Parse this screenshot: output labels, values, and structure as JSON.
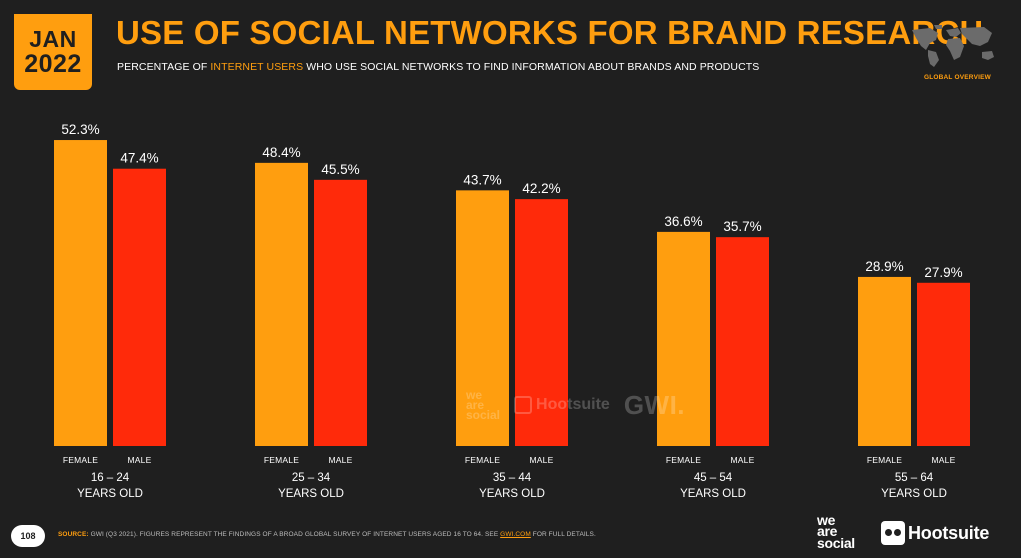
{
  "header": {
    "date_month": "JAN",
    "date_year": "2022",
    "title": "USE OF SOCIAL NETWORKS FOR BRAND RESEARCH",
    "subtitle_pre": "PERCENTAGE OF ",
    "subtitle_highlight": "INTERNET USERS",
    "subtitle_post": " WHO USE SOCIAL NETWORKS TO FIND INFORMATION ABOUT BRANDS AND PRODUCTS",
    "global_overview": "GLOBAL OVERVIEW",
    "map_icon": "world-map-icon"
  },
  "colors": {
    "background": "#1f1f1f",
    "accent": "#ff9e0f",
    "female": "#ff9e0f",
    "male": "#ff2a0a"
  },
  "chart_data": {
    "type": "bar",
    "categories": [
      [
        "16 – 24",
        "YEARS OLD"
      ],
      [
        "25 – 34",
        "YEARS OLD"
      ],
      [
        "35 – 44",
        "YEARS OLD"
      ],
      [
        "45 – 54",
        "YEARS OLD"
      ],
      [
        "55 – 64",
        "YEARS OLD"
      ]
    ],
    "series": [
      {
        "name": "FEMALE",
        "values": [
          52.3,
          48.4,
          43.7,
          36.6,
          28.9
        ],
        "labels": [
          "52.3%",
          "48.4%",
          "43.7%",
          "36.6%",
          "28.9%"
        ],
        "color": "#ff9e0f"
      },
      {
        "name": "MALE",
        "values": [
          47.4,
          45.5,
          42.2,
          35.7,
          27.9
        ],
        "labels": [
          "47.4%",
          "45.5%",
          "42.2%",
          "35.7%",
          "27.9%"
        ],
        "color": "#ff2a0a"
      }
    ],
    "title": "USE OF SOCIAL NETWORKS FOR BRAND RESEARCH",
    "xlabel": "",
    "ylabel": "",
    "ylim": [
      0,
      100
    ],
    "grid": false,
    "legend": "none"
  },
  "watermark": {
    "was": [
      "we",
      "are",
      "social"
    ],
    "hootsuite": "Hootsuite",
    "gwi": "GWI."
  },
  "footer": {
    "page_number": "108",
    "source_key": "SOURCE:",
    "source_text": " GWI (Q3 2021). FIGURES REPRESENT THE FINDINGS OF A BROAD GLOBAL SURVEY OF INTERNET USERS AGED 16 TO 64. SEE ",
    "source_link": "GWI.COM",
    "source_tail": " FOR FULL DETAILS.",
    "logo_was": [
      "we",
      "are",
      "social"
    ],
    "logo_hootsuite": "Hootsuite"
  }
}
